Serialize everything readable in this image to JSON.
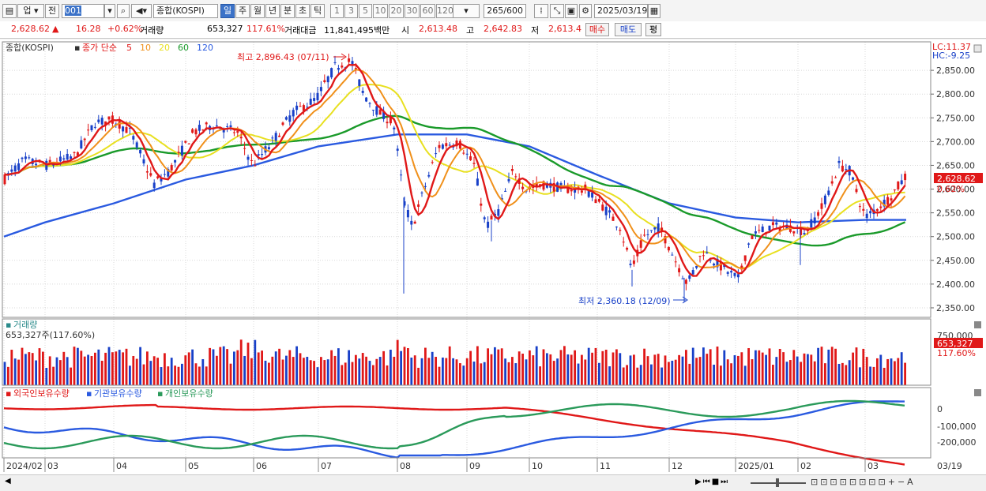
{
  "toolbar": {
    "market": "업",
    "prev": "전",
    "code": "001",
    "name": "종합(KOSPI)",
    "periods": [
      "일",
      "주",
      "월",
      "년",
      "분",
      "초",
      "틱"
    ],
    "active_period": "일",
    "nums": [
      "1",
      "3",
      "5",
      "10",
      "20",
      "30",
      "60",
      "120"
    ],
    "count": "265",
    "count_total": "/600",
    "date": "2025/03/19"
  },
  "quote": {
    "price": "2,628.62",
    "change": "16.28",
    "change_pct": "+0.62%",
    "volume_label": "거래량",
    "volume": "653,327",
    "volume_ratio": "117.61%",
    "amount_label": "거래대금",
    "amount": "11,841,495백만",
    "open_label": "시",
    "open": "2,613.48",
    "high_label": "고",
    "high": "2,642.83",
    "low_label": "저",
    "low": "2,613.4",
    "buy": "매수",
    "sell": "매도",
    "avg": "평"
  },
  "price_panel": {
    "legend_name": "종합(KOSPI)",
    "legend_ma_label": "종가 단순",
    "ma": [
      {
        "period": "5",
        "color": "#e01818"
      },
      {
        "period": "10",
        "color": "#f0901a"
      },
      {
        "period": "20",
        "color": "#e8e020"
      },
      {
        "period": "60",
        "color": "#1a9a2a"
      },
      {
        "period": "120",
        "color": "#2a5ae0"
      }
    ],
    "lc": "LC:11.37",
    "hc": "HC:-9.25",
    "max_label": "최고 2,896.43 (07/11)",
    "min_label": "최저 2,360.18 (12/09)",
    "current_price": "2,628.62",
    "current_pct": "0.62%",
    "y_ticks": [
      "2,850.00",
      "2,800.00",
      "2,750.00",
      "2,700.00",
      "2,650.00",
      "2,600.00",
      "2,550.00",
      "2,500.00",
      "2,450.00",
      "2,400.00",
      "2,350.00"
    ]
  },
  "volume_panel": {
    "title": "거래량",
    "value_label": "653,327주(117.60%)",
    "y_tick": "750,000",
    "current": "653,327",
    "current_pct": "117.60%"
  },
  "holding_panel": {
    "series": [
      {
        "name": "외국인보유수량",
        "color": "#e01818"
      },
      {
        "name": "기관보유수량",
        "color": "#2a5ae0"
      },
      {
        "name": "개인보유수량",
        "color": "#2a9a5a"
      }
    ],
    "y_ticks": [
      "0",
      "-100,000",
      "-200,000"
    ]
  },
  "x_axis": [
    "2024/02",
    "03",
    "04",
    "05",
    "06",
    "07",
    "08",
    "09",
    "10",
    "11",
    "12",
    "2025/01",
    "02",
    "03"
  ],
  "x_last": "03/19",
  "chart_data": [
    {
      "type": "line",
      "title": "종합(KOSPI)",
      "x": [
        "2024/02",
        "03",
        "04",
        "05",
        "06",
        "07",
        "08",
        "09",
        "10",
        "11",
        "12",
        "2025/01",
        "02",
        "03"
      ],
      "series": [
        {
          "name": "종가",
          "values": [
            2640,
            2660,
            2740,
            2720,
            2700,
            2860,
            2600,
            2560,
            2600,
            2500,
            2420,
            2510,
            2640,
            2628
          ]
        },
        {
          "name": "120",
          "values": [
            2500,
            2530,
            2570,
            2620,
            2650,
            2690,
            2715,
            2715,
            2690,
            2630,
            2570,
            2540,
            2530,
            2535
          ]
        }
      ],
      "ylim": [
        2330,
        2910
      ]
    }
  ],
  "scroll": {
    "left": "◀",
    "right": "▶"
  }
}
